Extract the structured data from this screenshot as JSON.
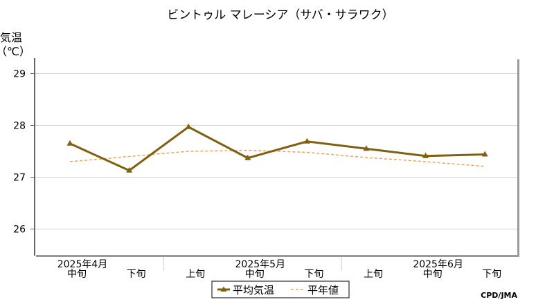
{
  "chart_data": {
    "type": "line",
    "title": "ビントゥル マレーシア（サバ・サラワク）",
    "ylabel_line1": "気温",
    "ylabel_line2": "（℃）",
    "ylim": [
      25.5,
      29.3
    ],
    "yticks": [
      26,
      27,
      28,
      29
    ],
    "grid": true,
    "x_tick_labels": [
      "中旬",
      "下旬",
      "上旬",
      "中旬",
      "下旬",
      "上旬",
      "中旬",
      "下旬"
    ],
    "month_labels": [
      {
        "label": "2025年4月",
        "at_index": 0
      },
      {
        "label": "2025年5月",
        "at_index": 3
      },
      {
        "label": "2025年6月",
        "at_index": 6
      }
    ],
    "series": [
      {
        "name": "平均気温",
        "style": "solid-triangle-markers",
        "color": "#806010",
        "values": [
          27.65,
          27.13,
          27.97,
          27.37,
          27.69,
          27.55,
          27.41,
          27.44
        ]
      },
      {
        "name": "平年値",
        "style": "dashed",
        "color": "#f0a050",
        "values": [
          27.3,
          27.4,
          27.5,
          27.52,
          27.48,
          27.38,
          27.3,
          27.21
        ]
      }
    ],
    "legend_placement": "bottom-center",
    "credit": "CPD/JMA"
  }
}
